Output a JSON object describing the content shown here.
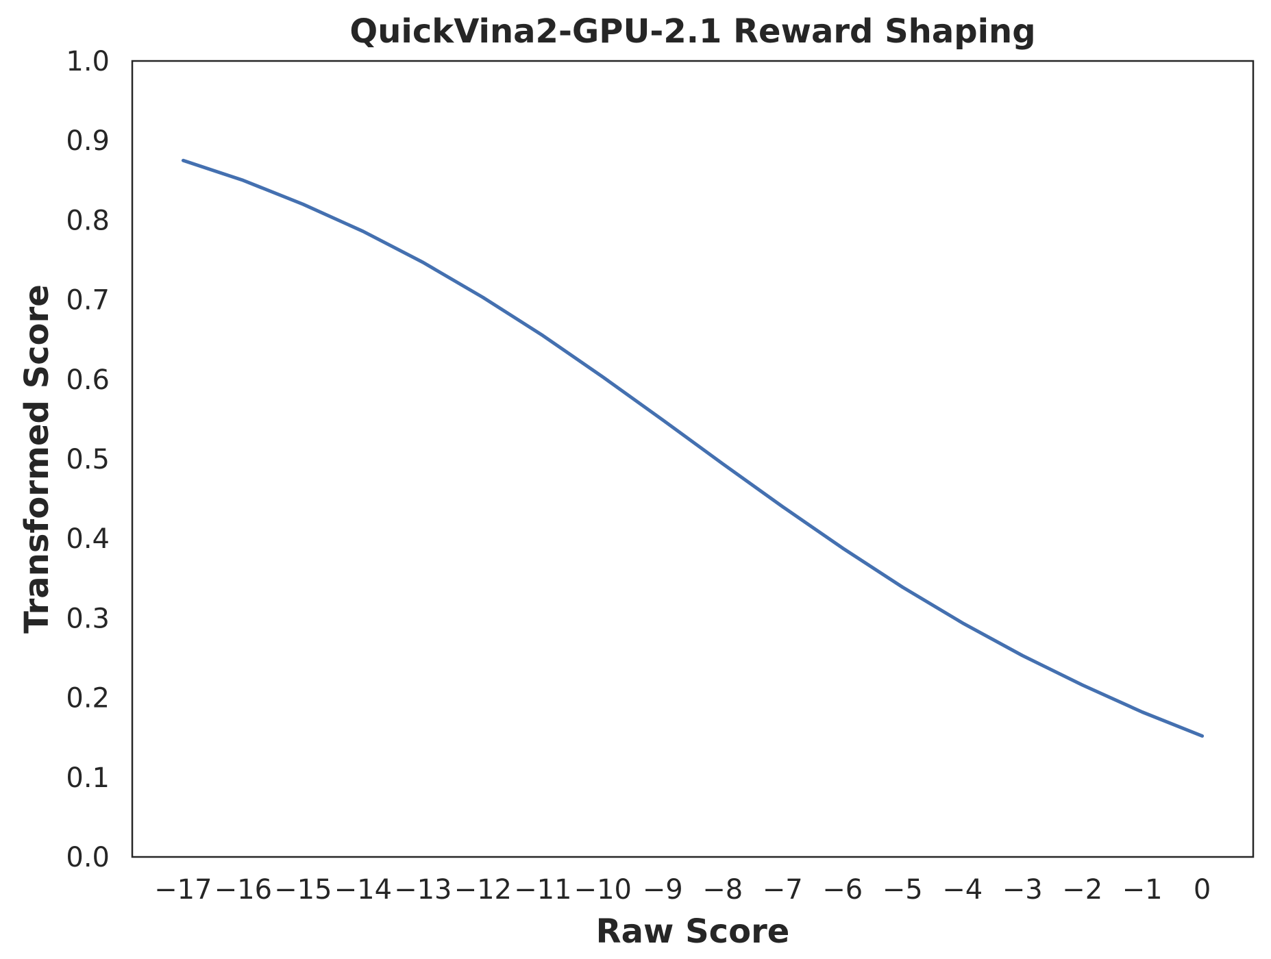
{
  "chart_data": {
    "type": "line",
    "title": "QuickVina2-GPU-2.1 Reward Shaping",
    "xlabel": "Raw Score",
    "ylabel": "Transformed Score",
    "xlim": [
      -17.85,
      0.85
    ],
    "ylim": [
      0.0,
      1.0
    ],
    "x_ticks": [
      -17,
      -16,
      -15,
      -14,
      -13,
      -12,
      -11,
      -10,
      -9,
      -8,
      -7,
      -6,
      -5,
      -4,
      -3,
      -2,
      -1,
      0
    ],
    "x_tick_labels": [
      "−17",
      "−16",
      "−15",
      "−14",
      "−13",
      "−12",
      "−11",
      "−10",
      "−9",
      "−8",
      "−7",
      "−6",
      "−5",
      "−4",
      "−3",
      "−2",
      "−1",
      "0"
    ],
    "y_ticks": [
      0.0,
      0.1,
      0.2,
      0.3,
      0.4,
      0.5,
      0.6,
      0.7,
      0.8,
      0.9,
      1.0
    ],
    "y_tick_labels": [
      "0.0",
      "0.1",
      "0.2",
      "0.3",
      "0.4",
      "0.5",
      "0.6",
      "0.7",
      "0.8",
      "0.9",
      "1.0"
    ],
    "grid": false,
    "series": [
      {
        "color": "#4470b0",
        "x": [
          -17,
          -16,
          -15,
          -14,
          -13,
          -12,
          -11,
          -10,
          -9,
          -8,
          -7,
          -6,
          -5,
          -4,
          -3,
          -2,
          -1,
          0
        ],
        "y": [
          0.875,
          0.85,
          0.82,
          0.786,
          0.747,
          0.703,
          0.655,
          0.603,
          0.549,
          0.494,
          0.44,
          0.388,
          0.339,
          0.294,
          0.253,
          0.216,
          0.182,
          0.152
        ]
      }
    ]
  }
}
